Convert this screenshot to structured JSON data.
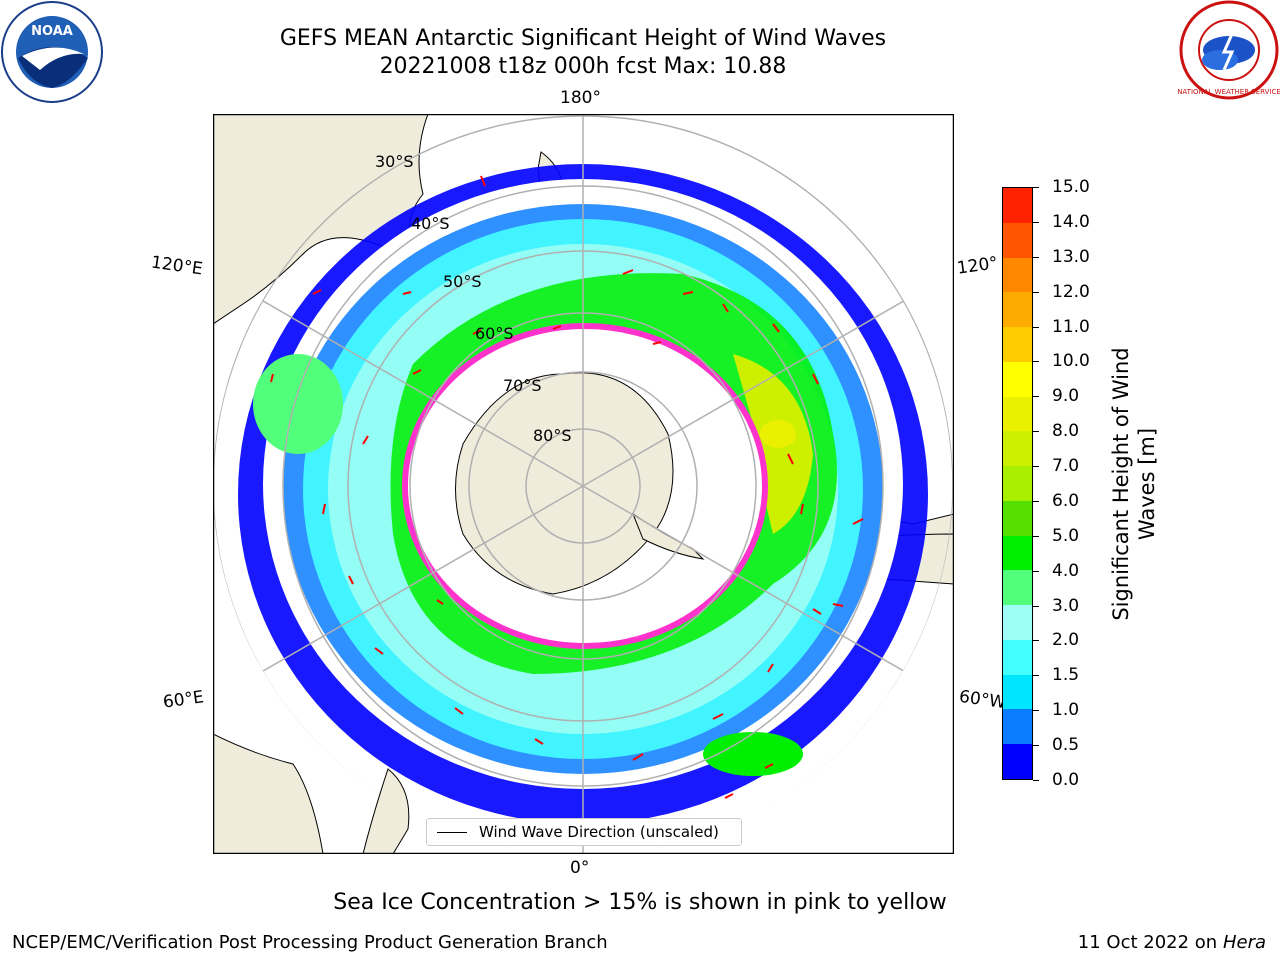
{
  "header": {
    "title_line1": "GEFS MEAN Antarctic Significant Height of Wind Waves",
    "title_line2": "20221008 t18z 000h fcst   Max: 10.88"
  },
  "logos": {
    "left": "NOAA",
    "right": "NATIONAL WEATHER SERVICE"
  },
  "map": {
    "longitude_labels": {
      "top": "180°",
      "bottom": "0°",
      "upper_left": "120°E",
      "upper_right": "120°",
      "lower_left": "60°E",
      "lower_right": "60°W"
    },
    "latitude_labels": [
      "30°S",
      "40°S",
      "50°S",
      "60°S",
      "70°S",
      "80°S"
    ],
    "land_color": "#efecdc",
    "grid_color": "#b0b0b0",
    "vector_color": "#ff0000",
    "ice_edge_color": "#ff33cc"
  },
  "colorbar": {
    "title": "Significant Height of Wind Waves [m]",
    "ticks": [
      "0.0",
      "0.5",
      "1.0",
      "1.5",
      "2.0",
      "3.0",
      "4.0",
      "5.0",
      "6.0",
      "7.0",
      "8.0",
      "9.0",
      "10.0",
      "11.0",
      "12.0",
      "13.0",
      "14.0",
      "15.0"
    ],
    "colors": [
      "#0000ff",
      "#0a7cff",
      "#00e5ff",
      "#44ffff",
      "#9dfff5",
      "#52ff7a",
      "#00ee00",
      "#55e000",
      "#aaee00",
      "#ccf000",
      "#eaf000",
      "#ffff00",
      "#ffcc00",
      "#ffaa00",
      "#ff8800",
      "#ff5500",
      "#ff2200"
    ]
  },
  "legend": {
    "label": "Wind Wave Direction (unscaled)"
  },
  "footnote": "Sea Ice Concentration > 15% is shown in pink to yellow",
  "credits": {
    "left": "NCEP/EMC/Verification Post Processing Product Generation Branch",
    "right_date": "11 Oct 2022 on",
    "right_host": "Hera"
  }
}
